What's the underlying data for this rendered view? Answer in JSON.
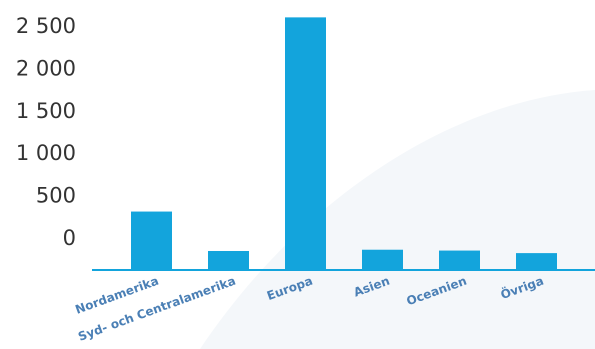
{
  "chart_data": {
    "type": "bar",
    "categories": [
      "Nordamerika",
      "Syd- och Centralamerika",
      "Europa",
      "Asien",
      "Oceanien",
      "Övriga"
    ],
    "values": [
      300,
      -165,
      2590,
      -150,
      -160,
      -190
    ],
    "yticks": [
      "2 500",
      "2 000",
      "1 500",
      "1 000",
      "500",
      "0"
    ],
    "ytick_values": [
      2500,
      2000,
      1500,
      1000,
      500,
      0
    ],
    "ylim": [
      -400,
      2600
    ],
    "bar_color": "#13a4dc",
    "axis_color": "#13a4dc",
    "background_shape_color": "#f4f7fa",
    "grid": false,
    "legend": "none"
  }
}
